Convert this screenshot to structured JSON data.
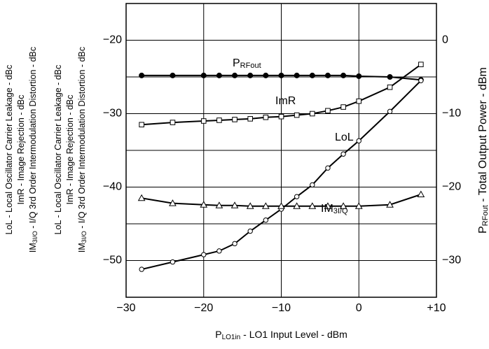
{
  "chart_data": {
    "type": "line",
    "x": [
      -28,
      -24,
      -20,
      -18,
      -16,
      -14,
      -12,
      -10,
      -8,
      -6,
      -4,
      -2,
      0,
      4,
      8
    ],
    "xlim": [
      -30,
      10
    ],
    "xticks": [
      -30,
      -20,
      -10,
      0,
      {
        "value": 10,
        "label": "+10"
      }
    ],
    "ylim": [
      -55,
      -15
    ],
    "yticks": [
      -50,
      -40,
      -30,
      -20
    ],
    "ygrid": [
      -50,
      -45,
      -40,
      -35,
      -30,
      -25,
      -20
    ],
    "y2lim": [
      -35,
      5
    ],
    "y2ticks": [
      -30,
      -20,
      -10,
      0
    ],
    "grid": true,
    "xlabel": {
      "main": "P",
      "sub": "LO1in",
      "rest": " - LO1 Input Level - dBm"
    },
    "ylabel_blocks": [
      [
        {
          "main": "LoL - Local Oscillator Carrier Leakage - dBc"
        },
        {
          "main": "ImR - Image Rejection - dBc"
        },
        {
          "main": "IM",
          "sub": "3I/O",
          "rest": " - I/Q 3rd Order Intermodulation Distortion - dBc"
        }
      ],
      [
        {
          "main": "LoL - Local Oscillator Carrier Leakage - dBc"
        },
        {
          "main": "ImR - Image Rejection - dBc"
        },
        {
          "main": "IM",
          "sub": "3I/O",
          "rest": " - I/Q 3rd Order Intermodulation Distortion - dBc"
        }
      ]
    ],
    "y2label": {
      "main": "P",
      "sub": "RFout",
      "rest": " - Total Output Power - dBm"
    },
    "series": [
      {
        "name": {
          "main": "P",
          "sub": "RFout"
        },
        "axis": "y2",
        "marker": "filled-circle",
        "color": "#000000",
        "values": [
          -4.8,
          -4.8,
          -4.8,
          -4.8,
          -4.8,
          -4.8,
          -4.8,
          -4.8,
          -4.8,
          -4.8,
          -4.8,
          -4.8,
          -4.9,
          -5.0,
          -5.4
        ]
      },
      {
        "name": {
          "main": "ImR"
        },
        "marker": "square",
        "color": "#000000",
        "values": [
          -31.5,
          -31.2,
          -31.0,
          -30.9,
          -30.8,
          -30.7,
          -30.5,
          -30.4,
          -30.2,
          -30.0,
          -29.6,
          -29.1,
          -28.3,
          -26.4,
          -23.3
        ]
      },
      {
        "name": {
          "main": "LoL"
        },
        "marker": "open-circle",
        "color": "#000000",
        "values": [
          -51.2,
          -50.2,
          -49.2,
          -48.7,
          -47.7,
          -46.0,
          -44.5,
          -43.0,
          -41.3,
          -39.7,
          -37.4,
          -35.5,
          -33.7,
          -29.7,
          -25.5
        ]
      },
      {
        "name": {
          "main": "IM",
          "sub": "3I/Q"
        },
        "marker": "triangle",
        "color": "#000000",
        "values": [
          -41.5,
          -42.2,
          -42.4,
          -42.5,
          -42.5,
          -42.6,
          -42.6,
          -42.6,
          -42.6,
          -42.6,
          -42.6,
          -42.6,
          -42.6,
          -42.4,
          -41.0
        ]
      }
    ]
  }
}
